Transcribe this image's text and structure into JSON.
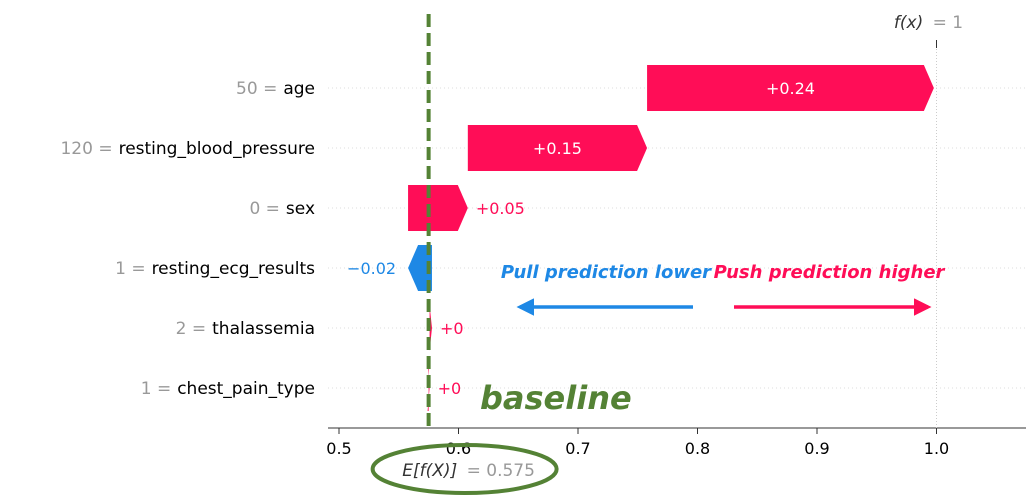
{
  "chart_data": {
    "type": "waterfall",
    "title": "",
    "xlabel": "",
    "ylabel": "",
    "xlim": [
      0.5,
      1.0
    ],
    "xticks": [
      "0.5",
      "0.6",
      "0.7",
      "0.8",
      "0.9",
      "1.0"
    ],
    "xtick_values": [
      0.5,
      0.6,
      0.7,
      0.8,
      0.9,
      1.0
    ],
    "base_value": 0.575,
    "base_value_label": "E[f(X)]",
    "base_value_text": "= 0.575",
    "output_value": 1,
    "output_value_label": "f(x)",
    "output_value_text": "= 1",
    "features": [
      {
        "value_text": "50 =",
        "name": "age",
        "contribution": 0.24,
        "label": "+0.24"
      },
      {
        "value_text": "120 =",
        "name": "resting_blood_pressure",
        "contribution": 0.15,
        "label": "+0.15"
      },
      {
        "value_text": "0 =",
        "name": "sex",
        "contribution": 0.05,
        "label": "+0.05"
      },
      {
        "value_text": "1 =",
        "name": "resting_ecg_results",
        "contribution": -0.02,
        "label": "−0.02"
      },
      {
        "value_text": "2 =",
        "name": "thalassemia",
        "contribution": 0.002,
        "label": "+0"
      },
      {
        "value_text": "1 =",
        "name": "chest_pain_type",
        "contribution": 0.0008,
        "label": "+0"
      }
    ],
    "annotations": {
      "baseline": "baseline",
      "pull_lower": "Pull prediction lower",
      "push_higher": "Push prediction higher"
    },
    "colors": {
      "positive": "#ff0d57",
      "negative": "#1e88e5",
      "baseline": "#548235",
      "gray_text": "#999999"
    }
  }
}
